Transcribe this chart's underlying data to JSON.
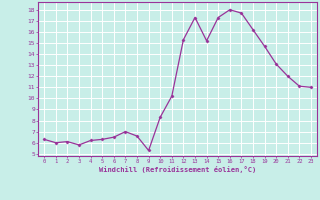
{
  "x": [
    0,
    1,
    2,
    3,
    4,
    5,
    6,
    7,
    8,
    9,
    10,
    11,
    12,
    13,
    14,
    15,
    16,
    17,
    18,
    19,
    20,
    21,
    22,
    23
  ],
  "y": [
    6.3,
    6.0,
    6.1,
    5.8,
    6.2,
    6.3,
    6.5,
    7.0,
    6.6,
    5.3,
    8.3,
    10.2,
    15.3,
    17.3,
    15.2,
    17.3,
    18.0,
    17.7,
    16.2,
    14.7,
    13.1,
    12.0,
    11.1,
    11.0
  ],
  "line_color": "#993399",
  "marker": "D",
  "marker_size": 1.5,
  "bg_color": "#c8eee8",
  "grid_color": "#ffffff",
  "xlabel": "Windchill (Refroidissement éolien,°C)",
  "xlabel_color": "#993399",
  "tick_color": "#993399",
  "yticks": [
    5,
    6,
    7,
    8,
    9,
    10,
    11,
    12,
    13,
    14,
    15,
    16,
    17,
    18
  ],
  "xticks": [
    0,
    1,
    2,
    3,
    4,
    5,
    6,
    7,
    8,
    9,
    10,
    11,
    12,
    13,
    14,
    15,
    16,
    17,
    18,
    19,
    20,
    21,
    22,
    23
  ],
  "ylim": [
    4.8,
    18.7
  ],
  "xlim": [
    -0.5,
    23.5
  ],
  "line_width": 0.9
}
